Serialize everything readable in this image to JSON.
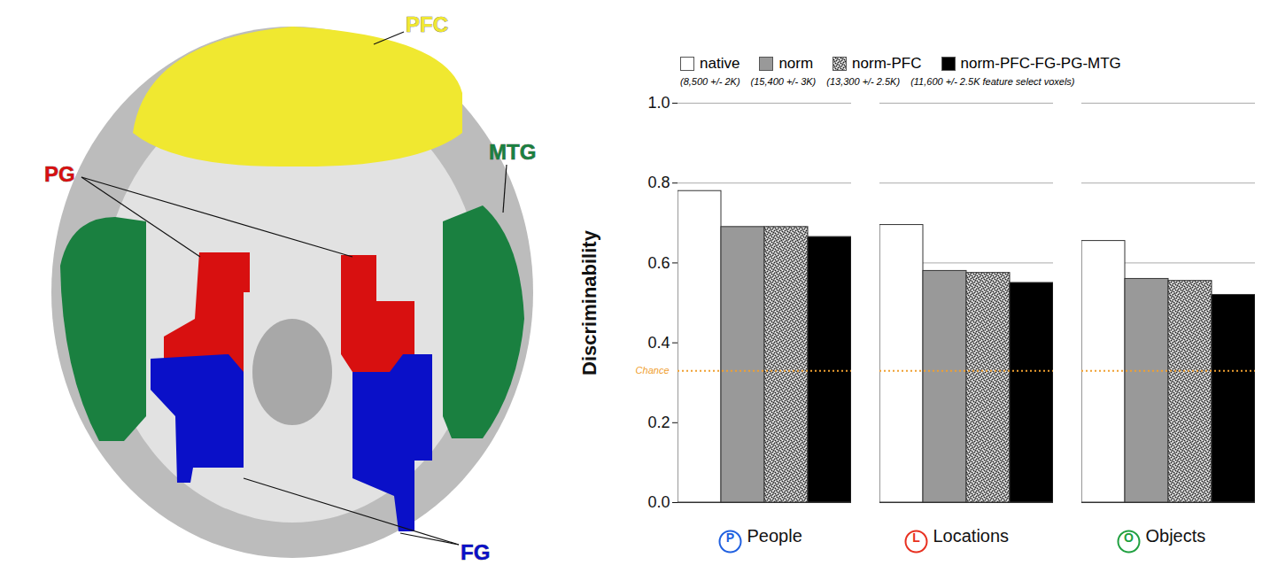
{
  "chart_data": {
    "type": "bar",
    "ylabel": "Discriminability",
    "categories": [
      "People",
      "Locations",
      "Objects"
    ],
    "category_badges": [
      {
        "letter": "P",
        "color": "#2060e0"
      },
      {
        "letter": "L",
        "color": "#e83020"
      },
      {
        "letter": "O",
        "color": "#20a040"
      }
    ],
    "series": [
      {
        "name": "native",
        "color": "#ffffff",
        "values": [
          0.78,
          0.695,
          0.655
        ]
      },
      {
        "name": "norm",
        "color": "#999999",
        "values": [
          0.69,
          0.58,
          0.56
        ]
      },
      {
        "name": "norm-PFC",
        "color": "#999999",
        "marker": "speckle",
        "values": [
          0.69,
          0.575,
          0.555
        ]
      },
      {
        "name": "norm-PFC-FG-PG-MTG",
        "color": "#000000",
        "values": [
          0.665,
          0.55,
          0.52
        ]
      }
    ],
    "annotations": [
      "(8,500 +/- 2K)",
      "(15,400 +/- 3K)",
      "(13,300 +/- 2.5K)",
      "(11,600 +/- 2.5K feature select voxels)"
    ],
    "chance": {
      "label": "Chance",
      "value": 0.33,
      "color": "#f0a030"
    },
    "ylim": [
      0,
      1
    ],
    "yticks": [
      {
        "value": 0,
        "label": "0.0"
      },
      0.2,
      0.4,
      0.6,
      0.8,
      {
        "value": 1,
        "label": "1.0"
      }
    ],
    "grid": true,
    "legend": "top"
  },
  "brain_map": {
    "regions": [
      {
        "label": "PFC",
        "color": "#f0e830"
      },
      {
        "label": "MTG",
        "color": "#1a8040"
      },
      {
        "label": "PG",
        "color": "#d81010"
      },
      {
        "label": "FG",
        "color": "#0a10c8"
      }
    ]
  }
}
